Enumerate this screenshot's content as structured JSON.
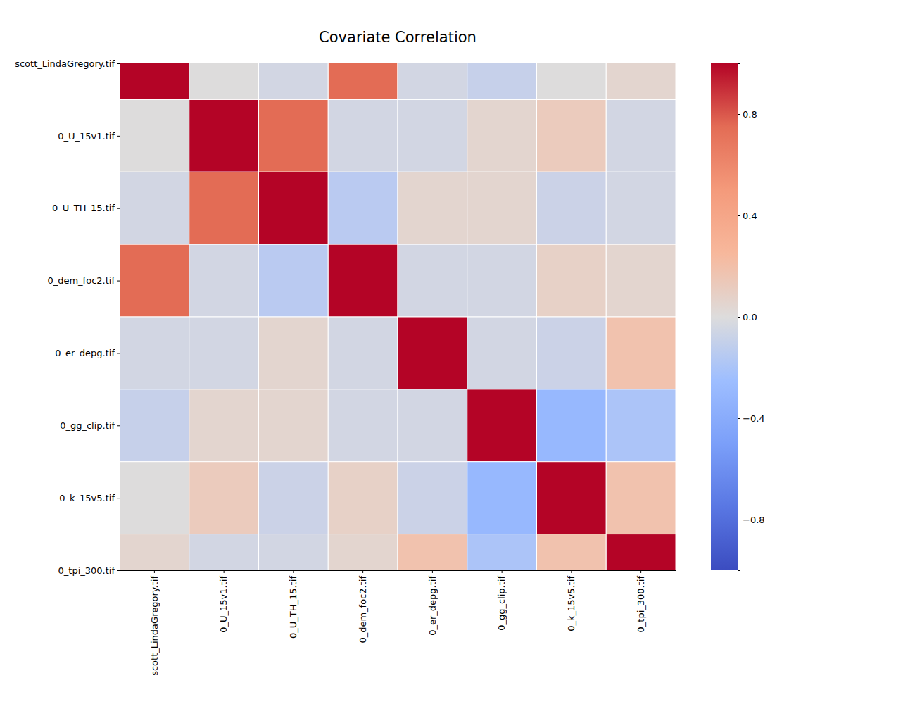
{
  "chart_data": {
    "type": "heatmap",
    "title": "Covariate Correlation",
    "categories": [
      "scott_LindaGregory.tif",
      "0_U_15v1.tif",
      "0_U_TH_15.tif",
      "0_dem_foc2.tif",
      "0_er_depg.tif",
      "0_gg_clip.tif",
      "0_k_15v5.tif",
      "0_tpi_300.tif"
    ],
    "values": [
      [
        1,
        0.0,
        -0.05,
        0.75,
        -0.05,
        -0.1,
        0.0,
        0.05
      ],
      [
        0.0,
        1,
        0.75,
        -0.05,
        -0.05,
        0.05,
        0.12,
        -0.05
      ],
      [
        -0.05,
        0.75,
        1,
        -0.15,
        0.05,
        0.05,
        -0.08,
        -0.05
      ],
      [
        0.75,
        -0.05,
        -0.15,
        1,
        -0.05,
        -0.05,
        0.08,
        0.05
      ],
      [
        -0.05,
        -0.05,
        0.05,
        -0.05,
        1,
        -0.05,
        -0.08,
        0.18
      ],
      [
        -0.1,
        0.05,
        0.05,
        -0.05,
        -0.05,
        1,
        -0.3,
        -0.2
      ],
      [
        0.0,
        0.12,
        -0.08,
        0.08,
        -0.08,
        -0.3,
        1,
        0.18
      ],
      [
        0.05,
        -0.05,
        -0.05,
        0.05,
        0.18,
        -0.2,
        0.18,
        1
      ]
    ],
    "ylim": [
      0,
      7
    ],
    "color_range": [
      -1,
      1
    ],
    "color_ticks": [
      {
        "value": -0.8,
        "label": "−0.8"
      },
      {
        "value": -0.4,
        "label": "−0.4"
      },
      {
        "value": 0,
        "label": "0.0"
      },
      0.4,
      0.8
    ]
  }
}
